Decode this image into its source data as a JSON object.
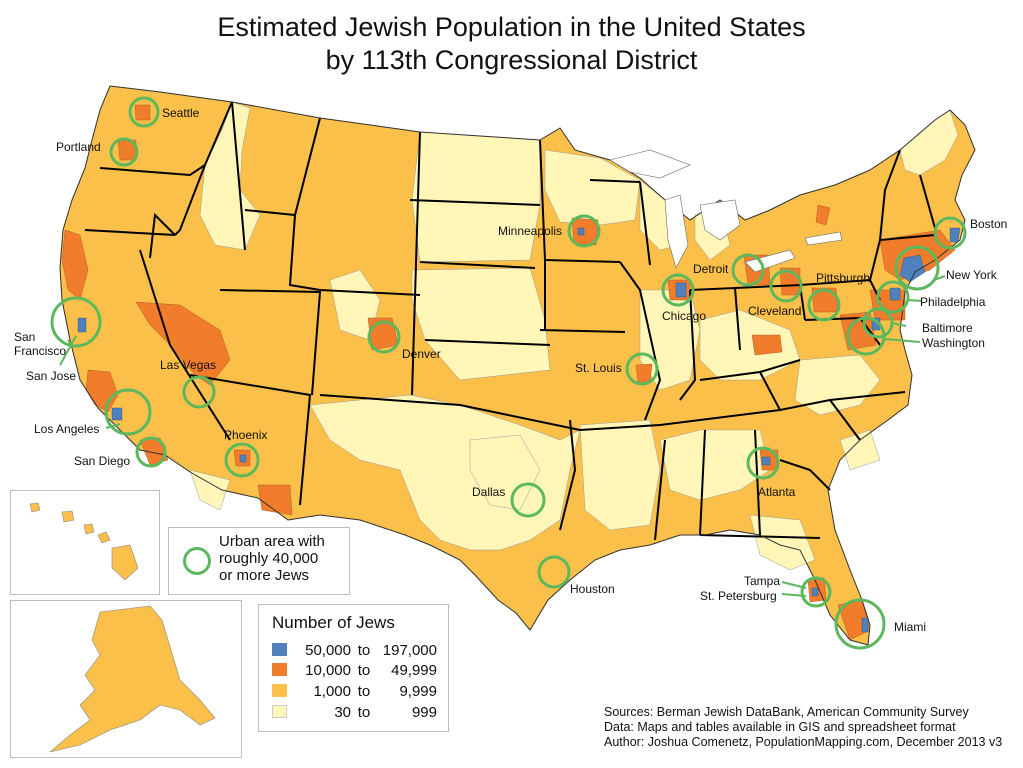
{
  "title_line1": "Estimated Jewish Population in the United States",
  "title_line2": "by 113th Congressional District",
  "colors": {
    "blue": "#4f81bd",
    "orange": "#f07c2c",
    "gold": "#fbc04a",
    "pale": "#fff6b8",
    "ring": "#5cb85c",
    "state_border": "#000000"
  },
  "cities": [
    {
      "label": "Seattle"
    },
    {
      "label": "Portland"
    },
    {
      "label": "San\nFrancisco"
    },
    {
      "label": "San Jose"
    },
    {
      "label": "Los Angeles"
    },
    {
      "label": "San Diego"
    },
    {
      "label": "Las Vegas"
    },
    {
      "label": "Phoenix"
    },
    {
      "label": "Denver"
    },
    {
      "label": "Minneapolis"
    },
    {
      "label": "Chicago"
    },
    {
      "label": "St. Louis"
    },
    {
      "label": "Dallas"
    },
    {
      "label": "Houston"
    },
    {
      "label": "Detroit"
    },
    {
      "label": "Cleveland"
    },
    {
      "label": "Pittsburgh"
    },
    {
      "label": "Boston"
    },
    {
      "label": "New York"
    },
    {
      "label": "Philadelphia"
    },
    {
      "label": "Baltimore"
    },
    {
      "label": "Washington"
    },
    {
      "label": "Atlanta"
    },
    {
      "label": "Tampa"
    },
    {
      "label": "St. Petersburg"
    },
    {
      "label": "Miami"
    }
  ],
  "urban_note": "Urban area with\nroughly 40,000\nor more Jews",
  "legend": {
    "title": "Number of Jews",
    "items": [
      {
        "lo": "50,000",
        "to": "to",
        "hi": "197,000",
        "color": "#4f81bd"
      },
      {
        "lo": "10,000",
        "to": "to",
        "hi": "49,999",
        "color": "#f07c2c"
      },
      {
        "lo": "1,000",
        "to": "to",
        "hi": "9,999",
        "color": "#fbc04a"
      },
      {
        "lo": "30",
        "to": "to",
        "hi": "999",
        "color": "#fff6b8"
      }
    ]
  },
  "sources": [
    "Sources: Berman Jewish DataBank, American Community Survey",
    "Data: Maps and tables available in GIS and spreadsheet format",
    "Author: Joshua Comenetz, PopulationMapping.com, December 2013 v3"
  ]
}
